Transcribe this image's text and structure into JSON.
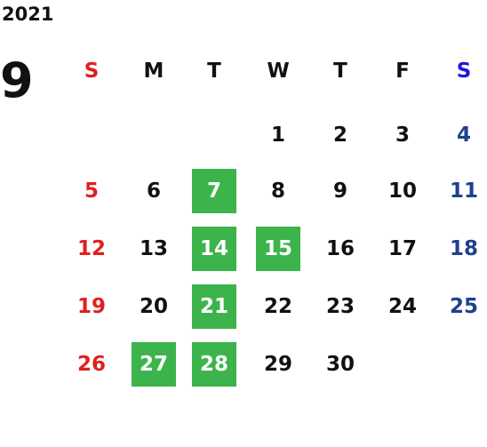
{
  "year": "2021",
  "month": "9",
  "weekdays": [
    "S",
    "M",
    "T",
    "W",
    "T",
    "F",
    "S"
  ],
  "weekday_colors": [
    "#e02020",
    "#111111",
    "#111111",
    "#111111",
    "#111111",
    "#111111",
    "#1a1adc"
  ],
  "day_colors": [
    "#e02020",
    "#111111",
    "#111111",
    "#111111",
    "#111111",
    "#111111",
    "#1f3f8f"
  ],
  "highlight_color": "#3cb44b",
  "weeks": [
    [
      {
        "day": null
      },
      {
        "day": null
      },
      {
        "day": null
      },
      {
        "day": 1
      },
      {
        "day": 2
      },
      {
        "day": 3
      },
      {
        "day": 4
      }
    ],
    [
      {
        "day": 5
      },
      {
        "day": 6
      },
      {
        "day": 7,
        "highlighted": true
      },
      {
        "day": 8
      },
      {
        "day": 9
      },
      {
        "day": 10
      },
      {
        "day": 11
      }
    ],
    [
      {
        "day": 12
      },
      {
        "day": 13
      },
      {
        "day": 14,
        "highlighted": true
      },
      {
        "day": 15,
        "highlighted": true
      },
      {
        "day": 16
      },
      {
        "day": 17
      },
      {
        "day": 18
      }
    ],
    [
      {
        "day": 19
      },
      {
        "day": 20
      },
      {
        "day": 21,
        "highlighted": true
      },
      {
        "day": 22
      },
      {
        "day": 23
      },
      {
        "day": 24
      },
      {
        "day": 25
      }
    ],
    [
      {
        "day": 26
      },
      {
        "day": 27,
        "highlighted": true
      },
      {
        "day": 28,
        "highlighted": true
      },
      {
        "day": 29
      },
      {
        "day": 30
      },
      {
        "day": null
      },
      {
        "day": null
      }
    ]
  ]
}
